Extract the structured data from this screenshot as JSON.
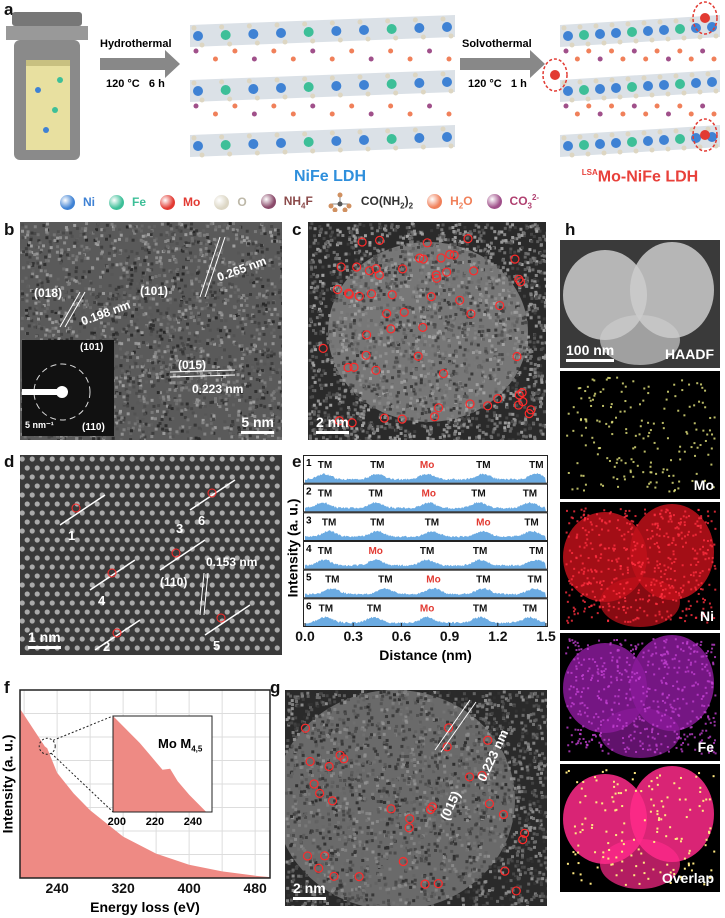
{
  "panel_a": {
    "label": "a",
    "step1": {
      "name": "Hydrothermal",
      "conditions": "120 °C   6 h"
    },
    "step2": {
      "name": "Solvothermal",
      "conditions": "120 °C   1 h"
    },
    "product1": "NiFe LDH",
    "product2_sup": "LSA",
    "product2": "Mo-NiFe LDH",
    "colors": {
      "product1": "#2f8fdc",
      "product2": "#e8403a"
    }
  },
  "legend": [
    {
      "main": "Ni",
      "color": "#3f82d4",
      "text_color": "#3f82d4"
    },
    {
      "main": "Fe",
      "color": "#3dbf98",
      "text_color": "#3dbf98"
    },
    {
      "main": "Mo",
      "color": "#e23a32",
      "text_color": "#e23a32"
    },
    {
      "main": "O",
      "color": "#dcd6c4",
      "text_color": "#bdb8a8"
    },
    {
      "main": "NH",
      "sub": "4",
      "tail": "F",
      "color": "#8a4a6a",
      "text_color": "#8b4a4a"
    },
    {
      "main": "CO(NH",
      "sub": "2",
      "tail": ")",
      "sub2": "2",
      "icon": "molecule",
      "text_color": "#333"
    },
    {
      "main": "H",
      "sub": "2",
      "tail": "O",
      "color": "#f0805a",
      "text_color": "#f0805a"
    },
    {
      "main": "CO",
      "sub": "3",
      "sup": "2-",
      "color": "#a0508a",
      "text_color": "#b04070"
    }
  ],
  "panel_b": {
    "label": "b",
    "annotations": [
      "(101)",
      "0.265 nm",
      "(018)",
      "0.198 nm",
      "(015)",
      "0.223 nm"
    ],
    "inset": [
      "(101)",
      "(110)",
      "5 nm⁻¹"
    ],
    "scale": "5 nm"
  },
  "panel_c": {
    "label": "c",
    "scale": "2 nm"
  },
  "panel_d": {
    "label": "d",
    "lines": [
      "1",
      "2",
      "3",
      "4",
      "5",
      "6"
    ],
    "annotations": [
      "(110)",
      "0.153 nm"
    ],
    "scale": "1 nm"
  },
  "panel_e": {
    "label": "e",
    "chart_data": {
      "type": "area",
      "xlabel": "Distance (nm)",
      "ylabel": "Intensity (a. u.)",
      "xlim": [
        0,
        1.5
      ],
      "xticks": [
        "0.0",
        "0.3",
        "0.6",
        "0.9",
        "1.2",
        "1.5"
      ],
      "color": "#3a8fd8",
      "profiles": [
        {
          "name": "1",
          "peaks": [
            {
              "x": 0.12,
              "label": "TM"
            },
            {
              "x": 0.45,
              "label": "TM"
            },
            {
              "x": 0.76,
              "label": "Mo"
            },
            {
              "x": 1.11,
              "label": "TM"
            },
            {
              "x": 1.44,
              "label": "TM"
            }
          ]
        },
        {
          "name": "2",
          "peaks": [
            {
              "x": 0.11,
              "label": "TM"
            },
            {
              "x": 0.44,
              "label": "TM"
            },
            {
              "x": 0.77,
              "label": "Mo"
            },
            {
              "x": 1.08,
              "label": "TM"
            },
            {
              "x": 1.4,
              "label": "TM"
            }
          ]
        },
        {
          "name": "3",
          "peaks": [
            {
              "x": 0.15,
              "label": "TM"
            },
            {
              "x": 0.45,
              "label": "TM"
            },
            {
              "x": 0.79,
              "label": "TM"
            },
            {
              "x": 1.11,
              "label": "Mo"
            },
            {
              "x": 1.41,
              "label": "TM"
            }
          ]
        },
        {
          "name": "4",
          "peaks": [
            {
              "x": 0.12,
              "label": "TM"
            },
            {
              "x": 0.44,
              "label": "Mo"
            },
            {
              "x": 0.76,
              "label": "TM"
            },
            {
              "x": 1.09,
              "label": "TM"
            },
            {
              "x": 1.44,
              "label": "TM"
            }
          ]
        },
        {
          "name": "5",
          "peaks": [
            {
              "x": 0.17,
              "label": "TM"
            },
            {
              "x": 0.5,
              "label": "TM"
            },
            {
              "x": 0.8,
              "label": "Mo"
            },
            {
              "x": 1.11,
              "label": "TM"
            },
            {
              "x": 1.43,
              "label": "TM"
            }
          ]
        },
        {
          "name": "6",
          "peaks": [
            {
              "x": 0.13,
              "label": "TM"
            },
            {
              "x": 0.43,
              "label": "TM"
            },
            {
              "x": 0.76,
              "label": "Mo"
            },
            {
              "x": 1.09,
              "label": "TM"
            },
            {
              "x": 1.4,
              "label": "TM"
            }
          ]
        }
      ]
    }
  },
  "panel_f": {
    "label": "f",
    "chart_data": {
      "type": "area",
      "xlabel": "Energy loss (eV)",
      "ylabel": "Intensity (a. u.)",
      "xlim": [
        195,
        498
      ],
      "ylim": [
        0,
        1
      ],
      "xticks": [
        "240",
        "320",
        "400",
        "480"
      ],
      "grid": true,
      "color": "#ee8a84",
      "x": [
        195,
        210,
        225,
        228,
        240,
        260,
        280,
        320,
        360,
        400,
        440,
        480,
        498
      ],
      "y": [
        0.9,
        0.8,
        0.7,
        0.69,
        0.56,
        0.45,
        0.36,
        0.22,
        0.13,
        0.07,
        0.035,
        0.012,
        0.005
      ],
      "inset": {
        "label": "Mo M",
        "label_sub": "4,5",
        "xlim": [
          198,
          250
        ],
        "xticks": [
          "200",
          "220",
          "240"
        ],
        "x": [
          198,
          205,
          212,
          218,
          224,
          228,
          232,
          238,
          244,
          247
        ],
        "y": [
          1.0,
          0.86,
          0.72,
          0.58,
          0.44,
          0.45,
          0.32,
          0.18,
          0.06,
          0.0
        ]
      }
    }
  },
  "panel_g": {
    "label": "g",
    "annotations": [
      "(015)",
      "0.223 nm"
    ],
    "scale": "2 nm"
  },
  "panel_h": {
    "label": "h",
    "maps": [
      "HAADF",
      "Mo",
      "Ni",
      "Fe",
      "Overlap"
    ],
    "scale": "100 nm"
  }
}
